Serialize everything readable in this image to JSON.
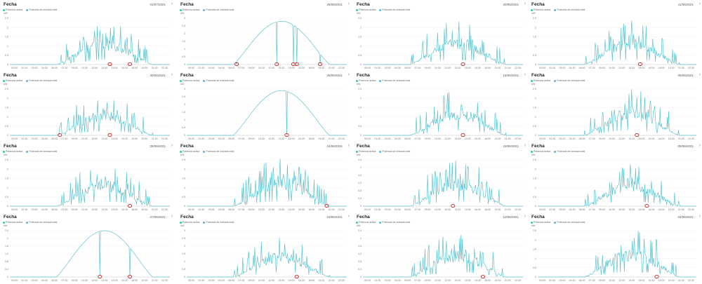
{
  "colors": {
    "series": "#5cc4d0",
    "legend_active": "#31c7a7",
    "legend_input": "#5bb7d6",
    "marker": "#c81e1e"
  },
  "legend": {
    "active": "Potencia activa",
    "input": "Potencia de entrada total"
  },
  "unit": "kW",
  "x_ticks": [
    "00:00",
    "01:30",
    "03:00",
    "04:30",
    "06:00",
    "07:30",
    "09:00",
    "10:30",
    "12:00",
    "13:30",
    "15:00",
    "16:30",
    "18:00",
    "19:30",
    "21:00",
    "22:30"
  ],
  "panels": [
    {
      "title": "Fecha",
      "date": "01/07/2021",
      "y_ticks": [
        "0",
        "0,5",
        "1",
        "1,5",
        "2",
        "2,5"
      ]
    },
    {
      "title": "Fecha",
      "date": "26/06/2021",
      "y_ticks": [
        "0",
        "0,5",
        "1",
        "1,5",
        "2",
        "2,5",
        "3"
      ]
    },
    {
      "title": "Fecha",
      "date": "20/06/2021",
      "y_ticks": [
        "0",
        "0,5",
        "1",
        "1,5",
        "2",
        "2,5"
      ]
    },
    {
      "title": "Fecha",
      "date": "11/06/2021",
      "y_ticks": [
        "0",
        "0,5",
        "1",
        "1,5",
        "2",
        "2,5"
      ]
    },
    {
      "title": "Fecha",
      "date": "30/06/2021",
      "y_ticks": [
        "0",
        "0,5",
        "1",
        "1,5",
        "2",
        "2,5"
      ]
    },
    {
      "title": "Fecha",
      "date": "25/06/2021",
      "y_ticks": [
        "0",
        "0,5",
        "1",
        "1,5",
        "2",
        "2,5",
        "3"
      ]
    },
    {
      "title": "Fecha",
      "date": "16/06/2021",
      "y_ticks": [
        "0",
        "0,5",
        "1",
        "1,5",
        "2",
        "2,5"
      ]
    },
    {
      "title": "Fecha",
      "date": "06/06/2021",
      "y_ticks": [
        "0",
        "0,5",
        "1",
        "1,5",
        "2",
        "2,5"
      ]
    },
    {
      "title": "Fecha",
      "date": "28/06/2021",
      "y_ticks": [
        "0",
        "0,5",
        "1",
        "1,5",
        "2",
        "2,5"
      ]
    },
    {
      "title": "Fecha",
      "date": "24/06/2021",
      "y_ticks": [
        "0",
        "0,5",
        "1",
        "1,5",
        "2",
        "2,5"
      ]
    },
    {
      "title": "Fecha",
      "date": "15/06/2021",
      "y_ticks": [
        "0",
        "0,4",
        "0,8",
        "1,2",
        "1,6",
        "2",
        "2,4"
      ]
    },
    {
      "title": "Fecha",
      "date": "05/06/2021",
      "y_ticks": [
        "0",
        "0,5",
        "1",
        "1,5",
        "2",
        "2,5"
      ]
    },
    {
      "title": "Fecha",
      "date": "27/06/2021",
      "y_ticks": [
        "0",
        "0,4",
        "0,8",
        "1,2",
        "1,6",
        "2",
        "2,4"
      ]
    },
    {
      "title": "Fecha",
      "date": "23/06/2021",
      "y_ticks": [
        "0",
        "0,5",
        "1",
        "1,5",
        "2",
        "2,5",
        "3"
      ]
    },
    {
      "title": "Fecha",
      "date": "12/06/2021",
      "y_ticks": [
        "0",
        "0,4",
        "0,8",
        "1,2",
        "1,6",
        "2",
        "2,4"
      ]
    },
    {
      "title": "Fecha",
      "date": "04/06/2021",
      "y_ticks": [
        "0",
        "0,5",
        "1",
        "1,5",
        "2",
        "2,5"
      ]
    }
  ],
  "chart_data": [
    {
      "type": "line",
      "date": "01/07/2021",
      "ylim": [
        0,
        2.5
      ],
      "shape": "spiky",
      "peak": 2.3,
      "markers": [
        "15:00",
        "18:00"
      ]
    },
    {
      "type": "line",
      "date": "26/06/2021",
      "ylim": [
        0,
        3
      ],
      "shape": "smooth",
      "peak": 2.8,
      "markers": [
        "07:30",
        "13:30",
        "16:00",
        "16:30",
        "20:00"
      ]
    },
    {
      "type": "line",
      "date": "20/06/2021",
      "ylim": [
        0,
        2.5
      ],
      "shape": "spiky",
      "peak": 2.4,
      "markers": [
        "15:00"
      ]
    },
    {
      "type": "line",
      "date": "11/06/2021",
      "ylim": [
        0,
        2.5
      ],
      "shape": "spiky",
      "peak": 2.4,
      "markers": [
        "15:30"
      ]
    },
    {
      "type": "line",
      "date": "30/06/2021",
      "ylim": [
        0,
        2.5
      ],
      "shape": "spiky",
      "peak": 2.2,
      "markers": [
        "07:30",
        "15:00"
      ]
    },
    {
      "type": "line",
      "date": "25/06/2021",
      "ylim": [
        0,
        3
      ],
      "shape": "smooth",
      "peak": 2.9,
      "markers": [
        "15:00"
      ]
    },
    {
      "type": "line",
      "date": "16/06/2021",
      "ylim": [
        0,
        2.5
      ],
      "shape": "spiky",
      "peak": 2.4,
      "markers": [
        "15:00"
      ]
    },
    {
      "type": "line",
      "date": "06/06/2021",
      "ylim": [
        0,
        2.5
      ],
      "shape": "spiky",
      "peak": 2.5,
      "markers": [
        "15:00"
      ]
    },
    {
      "type": "line",
      "date": "28/06/2021",
      "ylim": [
        0,
        2.5
      ],
      "shape": "spiky",
      "peak": 2.3,
      "markers": [
        "18:00"
      ]
    },
    {
      "type": "line",
      "date": "24/06/2021",
      "ylim": [
        0,
        2.5
      ],
      "shape": "spiky",
      "peak": 2.6,
      "markers": [
        "21:00"
      ]
    },
    {
      "type": "line",
      "date": "15/06/2021",
      "ylim": [
        0,
        2.4
      ],
      "shape": "spiky",
      "peak": 2.4,
      "markers": [
        "13:30"
      ]
    },
    {
      "type": "line",
      "date": "05/06/2021",
      "ylim": [
        0,
        2.5
      ],
      "shape": "spiky",
      "peak": 2.3,
      "markers": [
        "16:30"
      ]
    },
    {
      "type": "line",
      "date": "27/06/2021",
      "ylim": [
        0,
        2.4
      ],
      "shape": "smooth",
      "peak": 2.4,
      "markers": [
        "13:30",
        "18:00"
      ]
    },
    {
      "type": "line",
      "date": "23/06/2021",
      "ylim": [
        0,
        3
      ],
      "shape": "spiky",
      "peak": 2.7,
      "markers": [
        "16:30"
      ]
    },
    {
      "type": "line",
      "date": "12/06/2021",
      "ylim": [
        0,
        2.4
      ],
      "shape": "spiky",
      "peak": 2.3,
      "markers": [
        "18:00"
      ]
    },
    {
      "type": "line",
      "date": "04/06/2021",
      "ylim": [
        0,
        2.5
      ],
      "shape": "spiky",
      "peak": 2.6,
      "markers": [
        "18:00"
      ]
    }
  ]
}
